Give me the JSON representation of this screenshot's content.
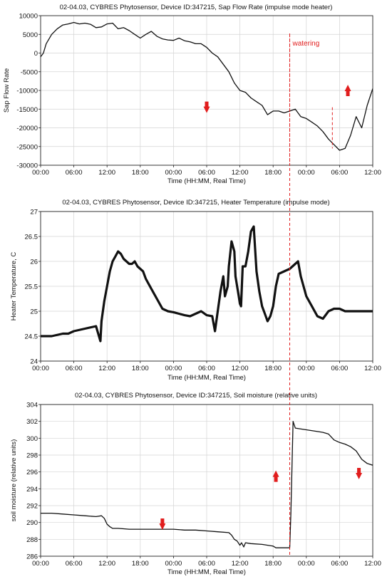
{
  "annotation_color": "#e11d1d",
  "line_color": "#111111",
  "grid_color": "#d4d4d4",
  "chart_data": [
    {
      "type": "line",
      "title": "02-04.03, CYBRES Phytosensor, Device ID:347215, Sap Flow Rate  (impulse mode heater)",
      "xlabel": "Time (HH:MM, Real Time)",
      "ylabel": "Sap Flow Rate",
      "x_ticks": [
        "00:00",
        "06:00",
        "12:00",
        "18:00",
        "00:00",
        "06:00",
        "12:00",
        "18:00",
        "00:00",
        "06:00",
        "12:00"
      ],
      "xlim": [
        0,
        60
      ],
      "ylim": [
        -30000,
        10000
      ],
      "y_ticks": [
        "10000",
        "5000",
        "0",
        "-5000",
        "-10000",
        "-15000",
        "-20000",
        "-25000",
        "-30000"
      ],
      "y_tick_values": [
        10000,
        5000,
        0,
        -5000,
        -10000,
        -15000,
        -20000,
        -25000,
        -30000
      ],
      "grid": true,
      "series": [
        {
          "x": [
            0,
            0.5,
            1,
            2,
            3,
            4,
            5,
            6,
            7,
            8,
            9,
            10,
            11,
            12,
            13,
            14,
            15,
            16,
            17,
            18,
            19,
            20,
            21,
            22,
            23,
            24,
            25,
            26,
            27,
            28,
            29,
            30,
            31,
            32,
            33,
            34,
            35,
            36,
            37,
            38,
            39,
            40,
            41,
            42,
            43,
            44,
            45,
            46,
            47,
            48,
            49,
            50,
            51,
            52,
            53,
            54,
            55,
            56,
            57,
            58,
            59,
            60
          ],
          "y": [
            -1000,
            0,
            2500,
            5000,
            6500,
            7500,
            7800,
            8200,
            7800,
            8000,
            7700,
            6800,
            7000,
            7800,
            8000,
            6500,
            6800,
            6000,
            5000,
            4000,
            5000,
            5800,
            4500,
            3800,
            3500,
            3400,
            4000,
            3300,
            3000,
            2500,
            2500,
            1500,
            0,
            -1000,
            -3000,
            -5000,
            -8000,
            -10000,
            -10500,
            -12000,
            -13000,
            -14000,
            -16500,
            -15500,
            -15500,
            -16000,
            -15500,
            -15000,
            -17000,
            -17500,
            -18500,
            -19500,
            -21000,
            -23000,
            -24500,
            -26000,
            -25500,
            -22000,
            -17000,
            -20000,
            -14000,
            -9500
          ]
        }
      ],
      "annotations": [
        {
          "text": "watering",
          "x": 45,
          "y": 2000
        },
        {
          "text": "down-arrow",
          "x": 30,
          "y": -14500
        },
        {
          "text": "up-arrow",
          "x": 55.5,
          "y": -10000
        }
      ],
      "markers": [
        {
          "x": 45,
          "y_from": 5000,
          "y_to": -30000
        },
        {
          "x": 52.7,
          "y_from": -14500,
          "y_to": -25500
        }
      ]
    },
    {
      "type": "line",
      "title": "02-04.03, CYBRES Phytosensor, Device ID:347215, Heater Temperature (impulse mode)",
      "xlabel": "Time (HH:MM, Real Time)",
      "ylabel": "Heater Temperature, C",
      "x_ticks": [
        "00:00",
        "06:00",
        "12:00",
        "18:00",
        "00:00",
        "06:00",
        "12:00",
        "18:00",
        "00:00",
        "06:00",
        "12:00"
      ],
      "xlim": [
        0,
        60
      ],
      "ylim": [
        24,
        27
      ],
      "y_ticks": [
        "27",
        "26.5",
        "26",
        "25.5",
        "25",
        "24.5",
        "24"
      ],
      "y_tick_values": [
        27,
        26.5,
        26,
        25.5,
        25,
        24.5,
        24
      ],
      "grid": true,
      "series": [
        {
          "x": [
            0,
            2,
            4,
            5,
            6,
            8,
            10,
            10.8,
            11,
            11.5,
            12,
            12.5,
            13,
            13.5,
            14,
            14.5,
            15,
            15.5,
            16,
            16.5,
            17,
            17.5,
            18,
            18.5,
            19,
            20,
            21,
            22,
            23,
            24,
            25,
            26,
            27,
            28,
            29,
            30,
            31,
            31.5,
            32,
            32.5,
            33,
            33.3,
            33.8,
            34,
            34.5,
            35,
            35.2,
            35.5,
            35.8,
            36,
            36.2,
            36.5,
            37,
            37.5,
            38,
            38.5,
            39,
            39.5,
            40,
            40.5,
            41,
            41.5,
            42,
            42.5,
            43,
            44,
            45,
            45.5,
            46,
            46.5,
            47,
            48,
            49,
            50,
            51,
            52,
            53,
            54,
            55,
            56,
            57,
            58,
            59,
            60
          ],
          "y": [
            24.5,
            24.5,
            24.55,
            24.55,
            24.6,
            24.65,
            24.7,
            24.4,
            24.8,
            25.2,
            25.5,
            25.8,
            26.0,
            26.1,
            26.2,
            26.15,
            26.05,
            26.0,
            25.95,
            25.95,
            26.0,
            25.9,
            25.85,
            25.8,
            25.65,
            25.45,
            25.25,
            25.05,
            25.0,
            24.98,
            24.95,
            24.92,
            24.9,
            24.95,
            25.0,
            24.92,
            24.9,
            24.6,
            25.0,
            25.4,
            25.7,
            25.3,
            25.5,
            25.9,
            26.4,
            26.2,
            25.7,
            25.5,
            25.3,
            25.15,
            25.1,
            25.9,
            25.9,
            26.2,
            26.6,
            26.7,
            25.8,
            25.4,
            25.1,
            24.95,
            24.8,
            24.9,
            25.1,
            25.5,
            25.75,
            25.8,
            25.85,
            25.9,
            25.95,
            26.0,
            25.7,
            25.3,
            25.1,
            24.9,
            24.85,
            25.0,
            25.05,
            25.05,
            25.0,
            25.0,
            25.0,
            25.0,
            25.0,
            25.0
          ]
        }
      ]
    },
    {
      "type": "line",
      "title": "02-04.03, CYBRES Phytosensor, Device ID:347215, Soil moisture (relative units)",
      "xlabel": "Time (HH:MM, Real Time)",
      "ylabel": "soil moisture (relative units)",
      "x_ticks": [
        "00:00",
        "06:00",
        "12:00",
        "18:00",
        "00:00",
        "06:00",
        "12:00",
        "18:00",
        "00:00",
        "06:00",
        "12:00"
      ],
      "xlim": [
        0,
        60
      ],
      "ylim": [
        286,
        304
      ],
      "y_ticks": [
        "304",
        "302",
        "300",
        "298",
        "296",
        "294",
        "292",
        "290",
        "288",
        "286"
      ],
      "y_tick_values": [
        304,
        302,
        300,
        298,
        296,
        294,
        292,
        290,
        288,
        286
      ],
      "grid": true,
      "series": [
        {
          "x": [
            0,
            2,
            4,
            6,
            8,
            10,
            11,
            11.5,
            12,
            12.5,
            13,
            13.5,
            14,
            16,
            18,
            20,
            22,
            24,
            26,
            28,
            30,
            32,
            34,
            34.5,
            35,
            35.5,
            36,
            36.3,
            36.7,
            37,
            38,
            40,
            42,
            42.5,
            43,
            43.5,
            44,
            45,
            45.2,
            45.6,
            46,
            48,
            50,
            51,
            52,
            53,
            54,
            55,
            56,
            57,
            58,
            59,
            60
          ],
          "y": [
            291.1,
            291.1,
            291.0,
            290.9,
            290.8,
            290.7,
            290.8,
            290.5,
            289.8,
            289.5,
            289.3,
            289.3,
            289.3,
            289.2,
            289.2,
            289.2,
            289.2,
            289.2,
            289.1,
            289.1,
            289.0,
            288.9,
            288.8,
            288.5,
            288.0,
            287.8,
            287.3,
            287.6,
            287.1,
            287.6,
            287.5,
            287.4,
            287.2,
            287.0,
            287.0,
            287.0,
            287.0,
            287.0,
            291.0,
            302.0,
            301.2,
            301.0,
            300.8,
            300.7,
            300.5,
            299.8,
            299.5,
            299.3,
            299.0,
            298.5,
            297.5,
            297.0,
            296.8
          ]
        }
      ],
      "annotations": [
        {
          "text": "down-arrow",
          "x": 22,
          "y": 289.8
        },
        {
          "text": "up-arrow",
          "x": 42.5,
          "y": 295.5
        },
        {
          "text": "down-arrow",
          "x": 57.5,
          "y": 295.8
        }
      ]
    }
  ],
  "watering_label": "watering"
}
